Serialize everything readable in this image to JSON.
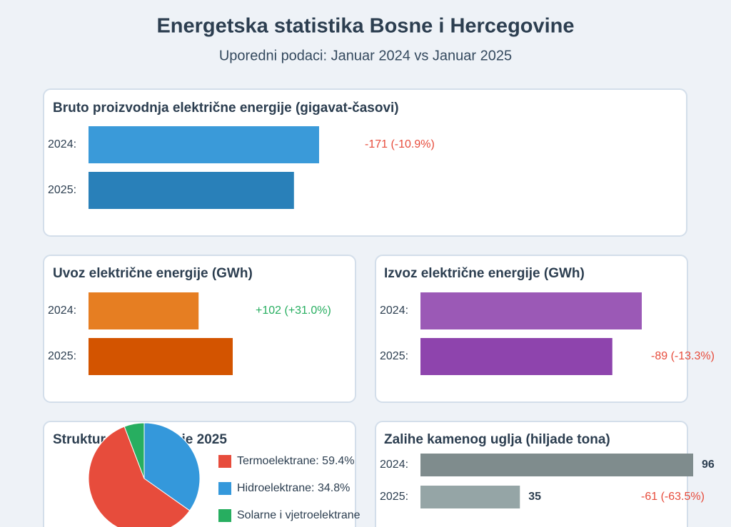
{
  "header": {
    "title": "Energetska statistika Bosne i Hercegovine",
    "subtitle": "Uporedni podaci: Januar 2024 vs Januar 2025"
  },
  "chart_data": [
    {
      "type": "bar",
      "title": "Bruto proizvodnja električne energije (gigavat-časovi)",
      "categories": [
        "2024:",
        "2025:"
      ],
      "values": [
        1569,
        1398
      ],
      "colors": [
        "#3a9ad9",
        "#2980b9"
      ],
      "annotation": "-171 (-10.9%)",
      "annotation_color": "#e74c3c"
    },
    {
      "type": "bar",
      "title": "Uvoz električne energije (GWh)",
      "categories": [
        "2024:",
        "2025:"
      ],
      "values": [
        329,
        431
      ],
      "colors": [
        "#e67e22",
        "#d35400"
      ],
      "annotation": "+102 (+31.0%)",
      "annotation_color": "#27ae60"
    },
    {
      "type": "bar",
      "title": "Izvoz električne energije (GWh)",
      "categories": [
        "2024:",
        "2025:"
      ],
      "values": [
        669,
        580
      ],
      "colors": [
        "#9b59b6",
        "#8e44ad"
      ],
      "annotation": "-89 (-13.3%)",
      "annotation_color": "#e74c3c"
    },
    {
      "type": "pie",
      "title": "Struktura proizvodnje 2025",
      "categories": [
        "Termoelektrane",
        "Hidroelektrane",
        "Solarne i vjetroelektrane"
      ],
      "values": [
        59.4,
        34.8,
        5.8
      ],
      "value_labels": [
        "Termoelektrane: 59.4%",
        "Hidroelektrane: 34.8%",
        "Solarne i vjetroelektrane"
      ],
      "colors": [
        "#e74c3c",
        "#3498db",
        "#27ae60"
      ]
    },
    {
      "type": "bar",
      "title": "Zalihe kamenog uglja (hiljade tona)",
      "categories": [
        "2024:",
        "2025:"
      ],
      "values": [
        96,
        35
      ],
      "colors": [
        "#7f8c8d",
        "#95a5a6"
      ],
      "data_labels": true,
      "annotation": "-61 (-63.5%)",
      "annotation_color": "#e74c3c"
    }
  ]
}
